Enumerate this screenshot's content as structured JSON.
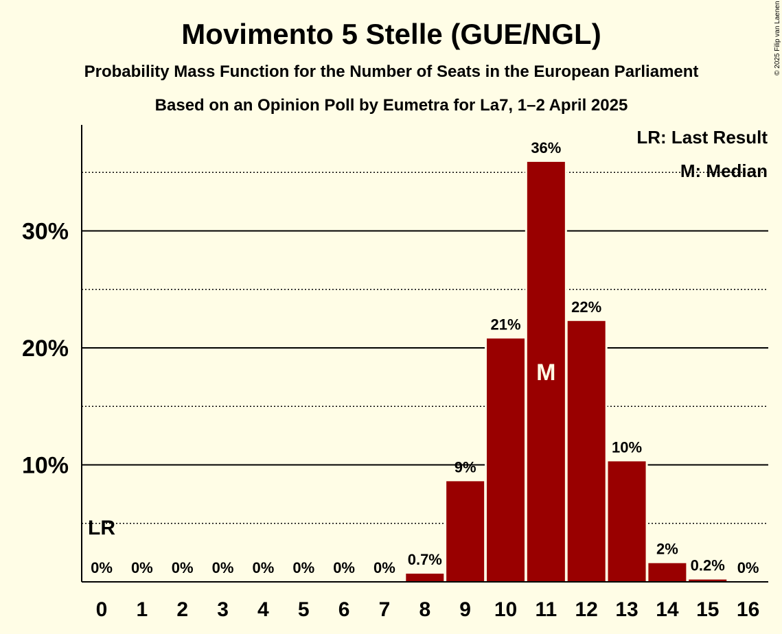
{
  "chart_data": {
    "type": "bar",
    "title": "Movimento 5 Stelle (GUE/NGL)",
    "subtitle": "Probability Mass Function for the Number of Seats in the European Parliament",
    "subtitle2": "Based on an Opinion Poll by Eumetra for La7, 1–2 April 2025",
    "categories": [
      "0",
      "1",
      "2",
      "3",
      "4",
      "5",
      "6",
      "7",
      "8",
      "9",
      "10",
      "11",
      "12",
      "13",
      "14",
      "15",
      "16"
    ],
    "values": [
      0,
      0,
      0,
      0,
      0,
      0,
      0,
      0,
      0.7,
      8.6,
      20.8,
      35.9,
      22.3,
      10.3,
      1.6,
      0.2,
      0
    ],
    "value_labels": [
      "0%",
      "0%",
      "0%",
      "0%",
      "0%",
      "0%",
      "0%",
      "0%",
      "0.7%",
      "9%",
      "21%",
      "36%",
      "22%",
      "10%",
      "2%",
      "0.2%",
      "0%"
    ],
    "ylim": [
      0,
      39
    ],
    "yticks": [
      {
        "value": 10,
        "label": "10%"
      },
      {
        "value": 20,
        "label": "20%"
      },
      {
        "value": 30,
        "label": "30%"
      }
    ],
    "ydotted": [
      5,
      15,
      25,
      35
    ],
    "median_index": 11,
    "median_marker": "M",
    "last_result_index": 0,
    "last_result_marker": "LR",
    "legend": [
      "LR: Last Result",
      "M: Median"
    ],
    "bar_color": "#990000",
    "background_color": "#fffde6",
    "copyright": "© 2025 Filip van Laenen"
  }
}
